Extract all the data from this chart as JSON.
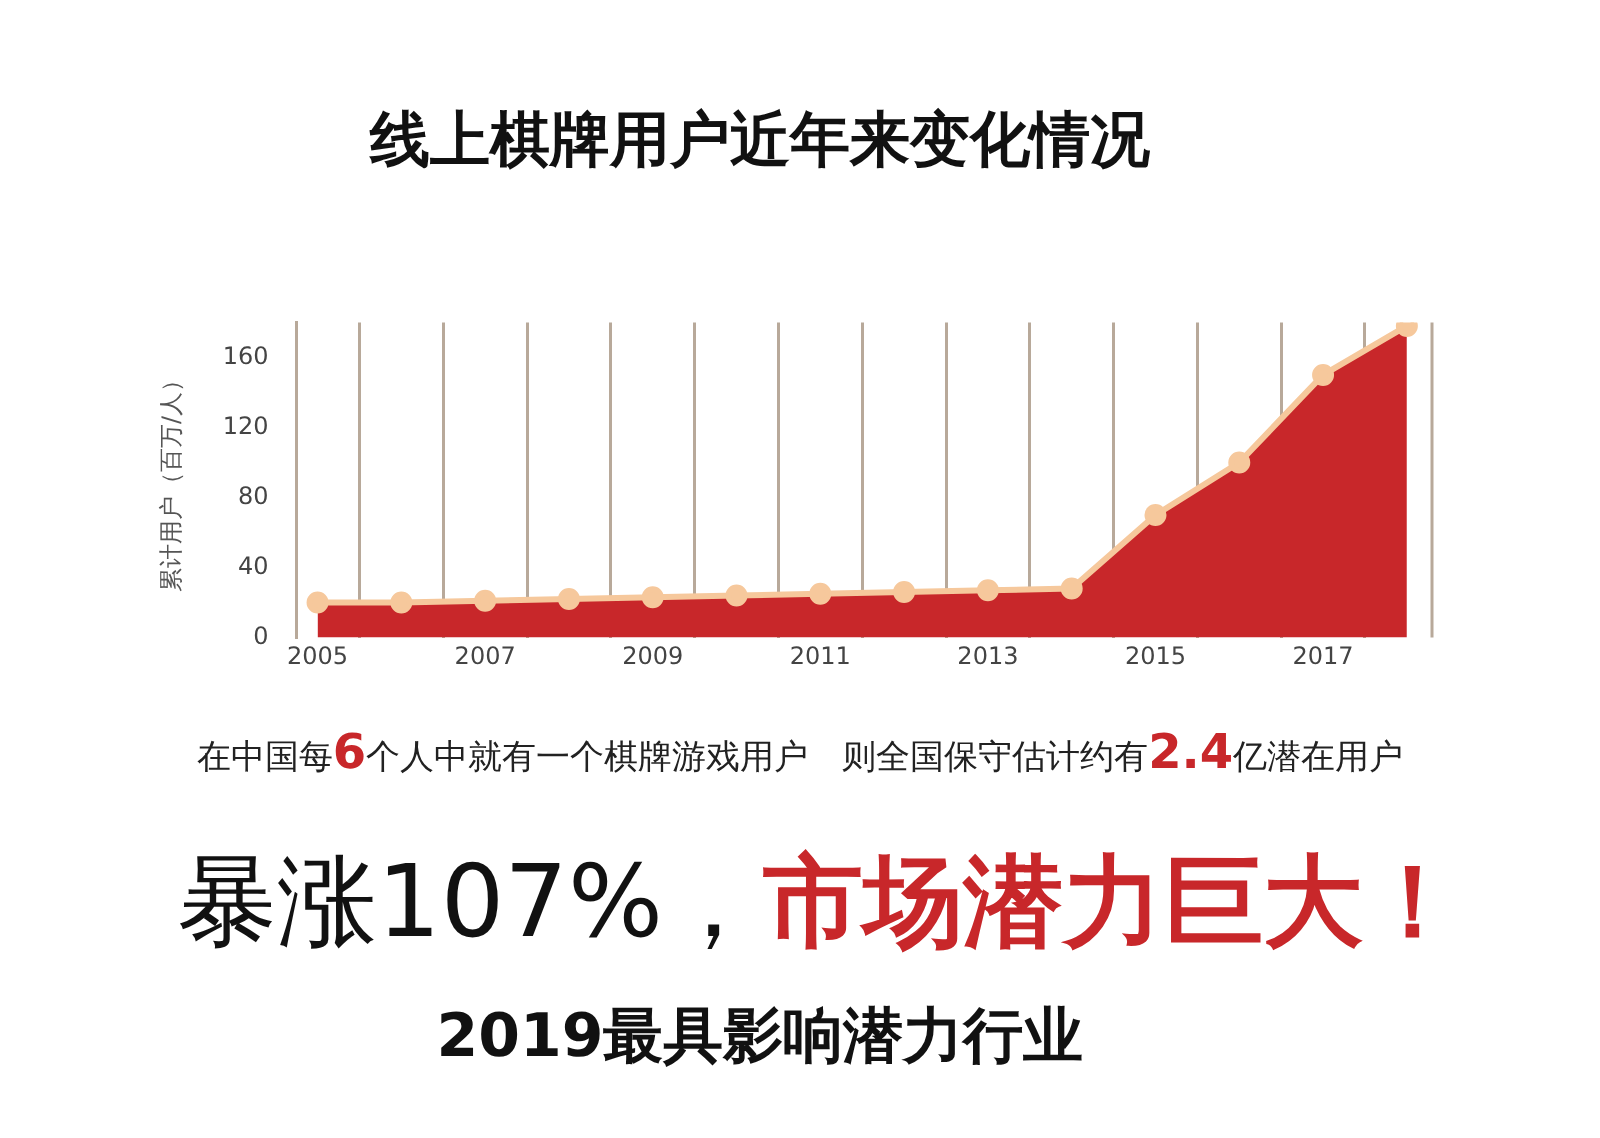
{
  "chart_data": {
    "type": "area",
    "title": "线上棋牌用户近年来变化情况",
    "ylabel": "累计用户（百万/人）",
    "x": [
      2005,
      2006,
      2007,
      2008,
      2009,
      2010,
      2011,
      2012,
      2013,
      2014,
      2015,
      2016,
      2017,
      2018
    ],
    "series": [
      {
        "color": "#c8272a",
        "values": [
          20,
          20,
          21,
          22,
          23,
          24,
          25,
          26,
          27,
          28,
          70,
          100,
          150,
          178
        ]
      }
    ],
    "xlim": [
      2004.75,
      2018.3
    ],
    "xticks": [
      2005,
      {
        "value": 2005.5,
        "label": null
      },
      {
        "value": 2006.5,
        "label": null
      },
      2007,
      {
        "value": 2007.5,
        "label": null
      },
      {
        "value": 2008.5,
        "label": null
      },
      2009,
      {
        "value": 2009.5,
        "label": null
      },
      {
        "value": 2010.5,
        "label": null
      },
      2011,
      {
        "value": 2011.5,
        "label": null
      },
      {
        "value": 2012.5,
        "label": null
      },
      2013,
      {
        "value": 2013.5,
        "label": null
      },
      {
        "value": 2014.5,
        "label": null
      },
      2015,
      {
        "value": 2015.5,
        "label": null
      },
      {
        "value": 2016.5,
        "label": null
      },
      2017,
      {
        "value": 2017.5,
        "label": null
      }
    ],
    "ylim": [
      0,
      180
    ],
    "yticks": [
      0,
      40,
      80,
      120,
      160
    ],
    "grid": "x",
    "marker": "circle",
    "legend": false,
    "annotations": [
      "在中国每6个人中就有一个棋牌游戏用户　则全国保守估计约有2.4亿潜在用户",
      "暴涨107%，",
      "市场潜力巨大！",
      "2019最具影响潜力行业"
    ]
  }
}
